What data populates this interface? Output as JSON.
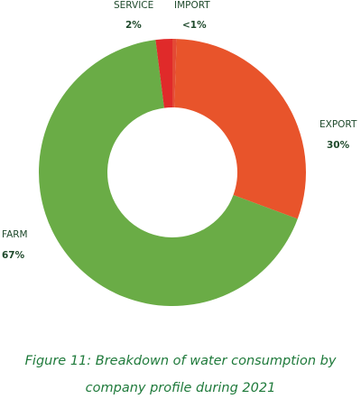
{
  "chart_data": {
    "type": "pie",
    "donut": true,
    "slices": [
      {
        "label": "IMPORT",
        "value": 0.5,
        "display": "<1%",
        "color": "#e34a35"
      },
      {
        "label": "EXPORT",
        "value": 30,
        "display": "30%",
        "color": "#e8542b"
      },
      {
        "label": "FARM",
        "value": 67,
        "display": "67%",
        "color": "#6aac46"
      },
      {
        "label": "SERVICE",
        "value": 2,
        "display": "2%",
        "color": "#e02a2a"
      }
    ]
  },
  "caption": {
    "line1": "Figure 11: Breakdown of water consumption by",
    "line2": "company profile during 2021"
  }
}
